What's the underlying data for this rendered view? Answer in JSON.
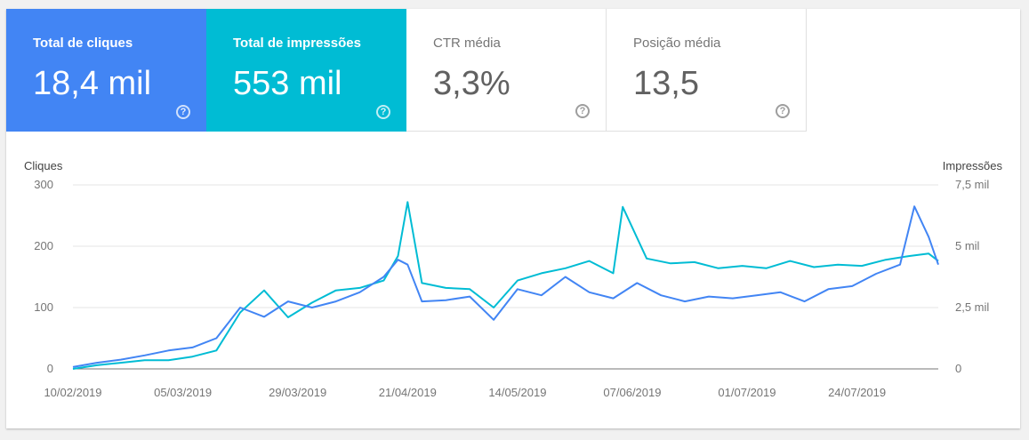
{
  "metrics": [
    {
      "label": "Total de cliques",
      "value": "18,4 mil",
      "selected": true,
      "color": "#4285f4"
    },
    {
      "label": "Total de impressões",
      "value": "553 mil",
      "selected": true,
      "color": "#00bcd4"
    },
    {
      "label": "CTR média",
      "value": "3,3%",
      "selected": false
    },
    {
      "label": "Posição média",
      "value": "13,5",
      "selected": false
    }
  ],
  "help_glyph": "?",
  "chart_data": {
    "type": "line",
    "left_axis_title": "Cliques",
    "right_axis_title": "Impressões",
    "left_ticks": [
      "0",
      "100",
      "200",
      "300"
    ],
    "left_tick_values": [
      0,
      100,
      200,
      300
    ],
    "right_ticks": [
      "0",
      "2,5 mil",
      "5 mil",
      "7,5 mil"
    ],
    "right_tick_values": [
      0,
      2500,
      5000,
      7500
    ],
    "ylim_left": [
      0,
      300
    ],
    "ylim_right": [
      0,
      7500
    ],
    "grid": true,
    "x_start": "2019-02-10",
    "x_end": "2019-08-10",
    "x_tick_labels": [
      "10/02/2019",
      "05/03/2019",
      "29/03/2019",
      "21/04/2019",
      "14/05/2019",
      "07/06/2019",
      "01/07/2019",
      "24/07/2019"
    ],
    "x_tick_dates": [
      "2019-02-10",
      "2019-03-05",
      "2019-03-29",
      "2019-04-21",
      "2019-05-14",
      "2019-06-07",
      "2019-07-01",
      "2019-07-24"
    ],
    "series": [
      {
        "name": "Cliques",
        "axis": "left",
        "color": "#4285f4",
        "x": [
          "2019-02-10",
          "2019-02-15",
          "2019-02-20",
          "2019-02-25",
          "2019-03-02",
          "2019-03-07",
          "2019-03-12",
          "2019-03-17",
          "2019-03-22",
          "2019-03-27",
          "2019-04-01",
          "2019-04-06",
          "2019-04-11",
          "2019-04-16",
          "2019-04-19",
          "2019-04-21",
          "2019-04-24",
          "2019-04-29",
          "2019-05-04",
          "2019-05-09",
          "2019-05-14",
          "2019-05-19",
          "2019-05-24",
          "2019-05-29",
          "2019-06-03",
          "2019-06-08",
          "2019-06-13",
          "2019-06-18",
          "2019-06-23",
          "2019-06-28",
          "2019-07-03",
          "2019-07-08",
          "2019-07-13",
          "2019-07-18",
          "2019-07-23",
          "2019-07-28",
          "2019-08-02",
          "2019-08-05",
          "2019-08-08",
          "2019-08-10"
        ],
        "values": [
          3,
          10,
          15,
          22,
          30,
          35,
          50,
          100,
          85,
          110,
          100,
          110,
          125,
          150,
          178,
          170,
          110,
          112,
          118,
          80,
          130,
          120,
          150,
          125,
          115,
          140,
          120,
          110,
          118,
          115,
          120,
          125,
          110,
          130,
          135,
          155,
          170,
          265,
          215,
          170
        ]
      },
      {
        "name": "Impressões",
        "axis": "right",
        "color": "#00bcd4",
        "x": [
          "2019-02-10",
          "2019-02-15",
          "2019-02-20",
          "2019-02-25",
          "2019-03-02",
          "2019-03-07",
          "2019-03-12",
          "2019-03-17",
          "2019-03-22",
          "2019-03-27",
          "2019-04-01",
          "2019-04-06",
          "2019-04-11",
          "2019-04-16",
          "2019-04-19",
          "2019-04-21",
          "2019-04-24",
          "2019-04-29",
          "2019-05-04",
          "2019-05-09",
          "2019-05-14",
          "2019-05-19",
          "2019-05-24",
          "2019-05-29",
          "2019-06-03",
          "2019-06-05",
          "2019-06-10",
          "2019-06-15",
          "2019-06-20",
          "2019-06-25",
          "2019-06-30",
          "2019-07-05",
          "2019-07-10",
          "2019-07-15",
          "2019-07-20",
          "2019-07-25",
          "2019-07-30",
          "2019-08-04",
          "2019-08-08",
          "2019-08-10"
        ],
        "values": [
          0,
          150,
          250,
          350,
          350,
          500,
          750,
          2300,
          3200,
          2100,
          2700,
          3200,
          3300,
          3600,
          4600,
          6800,
          3500,
          3300,
          3250,
          2500,
          3600,
          3900,
          4100,
          4400,
          3900,
          6600,
          4500,
          4300,
          4350,
          4100,
          4200,
          4100,
          4400,
          4150,
          4250,
          4200,
          4450,
          4600,
          4700,
          4400
        ]
      }
    ]
  }
}
